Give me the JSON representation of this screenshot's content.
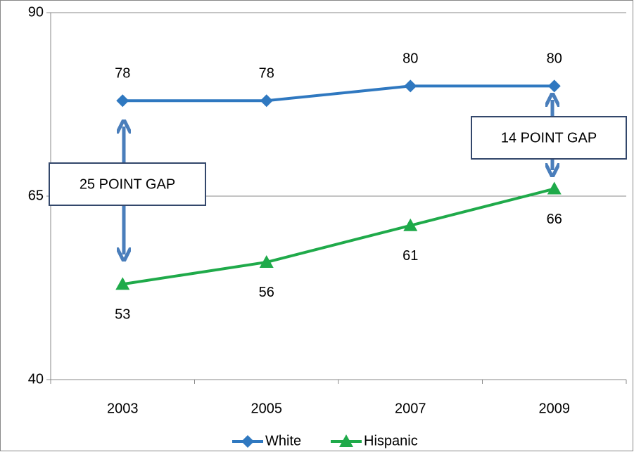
{
  "chart_data": {
    "type": "line",
    "categories": [
      "2003",
      "2005",
      "2007",
      "2009"
    ],
    "series": [
      {
        "name": "White",
        "color": "#2f78c0",
        "marker": "diamond",
        "values": [
          78,
          78,
          80,
          80
        ]
      },
      {
        "name": "Hispanic",
        "color": "#1faa4a",
        "marker": "triangle",
        "values": [
          53,
          56,
          61,
          66
        ]
      }
    ],
    "ylim": [
      40,
      90
    ],
    "yticks": [
      40,
      65,
      90
    ],
    "grid": true,
    "annotations": [
      "25 POINT GAP",
      "14 POINT GAP"
    ],
    "legend": "bottom"
  }
}
